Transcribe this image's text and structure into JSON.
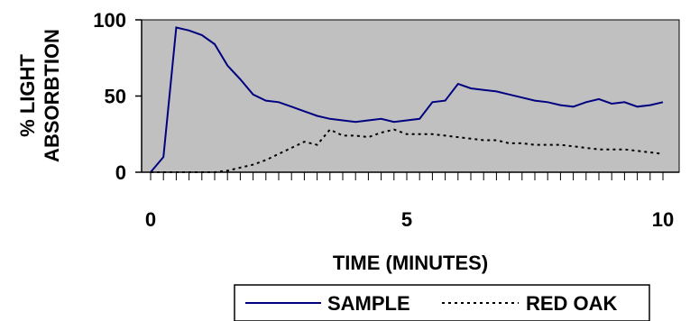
{
  "chart_data": {
    "type": "line",
    "title": "",
    "xlabel": "TIME (MINUTES)",
    "ylabel_lines": [
      "% LIGHT",
      "ABSORBTION"
    ],
    "xlim": [
      0,
      10
    ],
    "ylim": [
      0,
      100
    ],
    "x_ticks": [
      0,
      5,
      10
    ],
    "y_ticks": [
      0,
      50,
      100
    ],
    "grid": false,
    "plot_background": "#c0c0c0",
    "legend_position": "bottom",
    "series": [
      {
        "name": "SAMPLE",
        "color": "#000080",
        "style": "solid",
        "x": [
          0,
          0.25,
          0.5,
          0.75,
          1.0,
          1.25,
          1.5,
          1.75,
          2.0,
          2.25,
          2.5,
          2.75,
          3.0,
          3.25,
          3.5,
          3.75,
          4.0,
          4.25,
          4.5,
          4.75,
          5.0,
          5.25,
          5.5,
          5.75,
          6.0,
          6.25,
          6.5,
          6.75,
          7.0,
          7.25,
          7.5,
          7.75,
          8.0,
          8.25,
          8.5,
          8.75,
          9.0,
          9.25,
          9.5,
          9.75,
          10.0
        ],
        "values": [
          0,
          10,
          95,
          93,
          90,
          84,
          70,
          61,
          51,
          47,
          46,
          43,
          40,
          37,
          35,
          34,
          33,
          34,
          35,
          33,
          34,
          35,
          46,
          47,
          58,
          55,
          54,
          53,
          51,
          49,
          47,
          46,
          44,
          43,
          46,
          48,
          45,
          46,
          43,
          44,
          46
        ]
      },
      {
        "name": "RED OAK",
        "color": "#000000",
        "style": "dotted",
        "x": [
          0,
          0.25,
          0.5,
          0.75,
          1.0,
          1.25,
          1.5,
          1.75,
          2.0,
          2.25,
          2.5,
          2.75,
          3.0,
          3.25,
          3.5,
          3.75,
          4.0,
          4.25,
          4.5,
          4.75,
          5.0,
          5.25,
          5.5,
          5.75,
          6.0,
          6.25,
          6.5,
          6.75,
          7.0,
          7.25,
          7.5,
          7.75,
          8.0,
          8.25,
          8.5,
          8.75,
          9.0,
          9.25,
          9.5,
          9.75,
          10.0
        ],
        "values": [
          0,
          0,
          0,
          0,
          0,
          0,
          1,
          3,
          5,
          8,
          12,
          16,
          20,
          18,
          28,
          24,
          24,
          23,
          26,
          28,
          25,
          25,
          25,
          24,
          23,
          22,
          21,
          21,
          19,
          19,
          18,
          18,
          18,
          17,
          16,
          15,
          15,
          15,
          14,
          13,
          12
        ]
      }
    ]
  }
}
